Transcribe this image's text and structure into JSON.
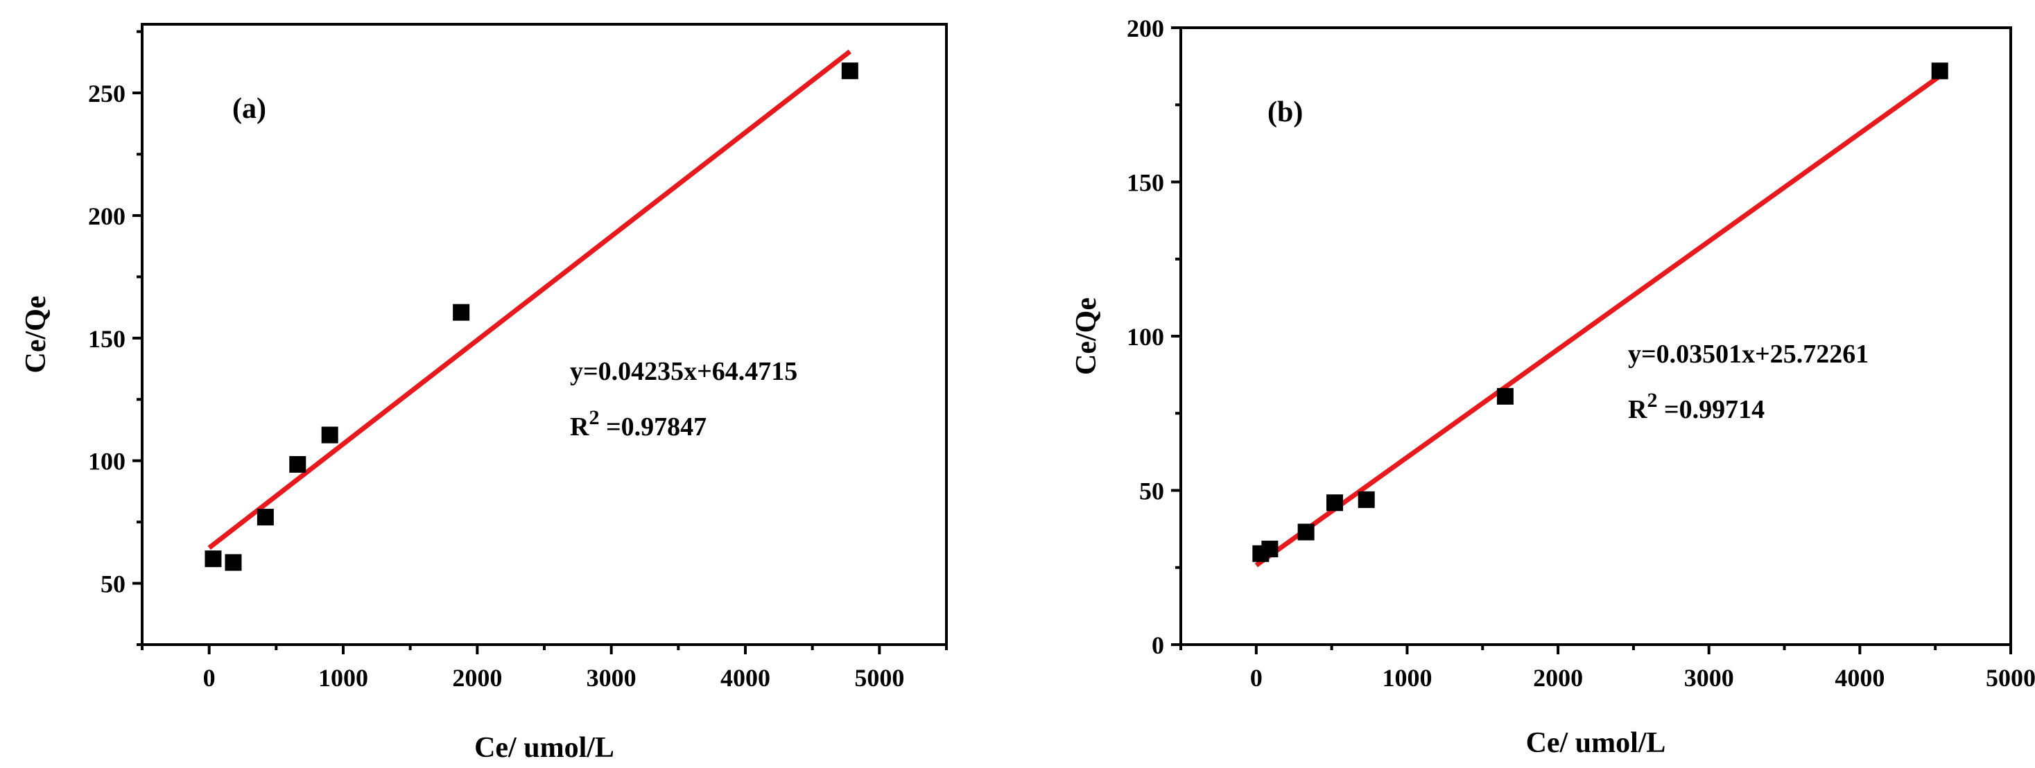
{
  "chart_data": [
    {
      "type": "scatter",
      "panel_label": "(a)",
      "xlabel": "Ce/ umol/L",
      "ylabel": "Ce/Qe",
      "xlim": [
        -500,
        5500
      ],
      "ylim": [
        25,
        278
      ],
      "xticks": [
        0,
        1000,
        2000,
        3000,
        4000,
        5000
      ],
      "yticks": [
        50,
        100,
        150,
        200,
        250
      ],
      "xtick_labels": [
        "0",
        "1000",
        "2000",
        "3000",
        "4000",
        "5000"
      ],
      "ytick_labels": [
        "50",
        "100",
        "150",
        "200",
        "250"
      ],
      "points": [
        {
          "x": 30,
          "y": 60
        },
        {
          "x": 180,
          "y": 58.5
        },
        {
          "x": 420,
          "y": 77
        },
        {
          "x": 660,
          "y": 98.5
        },
        {
          "x": 900,
          "y": 110.5
        },
        {
          "x": 1880,
          "y": 160.5
        },
        {
          "x": 4780,
          "y": 259
        }
      ],
      "fit": {
        "slope": 0.04235,
        "intercept": 64.4715,
        "x_range": [
          0,
          4780
        ]
      },
      "equation": "y=0.04235x+64.4715",
      "r2_prefix": "R",
      "r2_sup": "2",
      "r2_value": " =0.97847",
      "grid": false,
      "marker_color": "#000000",
      "fit_color": "#e8191c"
    },
    {
      "type": "scatter",
      "panel_label": "(b)",
      "xlabel": "Ce/ umol/L",
      "ylabel": "Ce/Qe",
      "xlim": [
        -500,
        5000
      ],
      "ylim": [
        0,
        200
      ],
      "xticks": [
        0,
        1000,
        2000,
        3000,
        4000,
        5000
      ],
      "yticks": [
        0,
        50,
        100,
        150,
        200
      ],
      "xtick_labels": [
        "0",
        "1000",
        "2000",
        "3000",
        "4000",
        "5000"
      ],
      "ytick_labels": [
        "0",
        "50",
        "100",
        "150",
        "200"
      ],
      "points": [
        {
          "x": 30,
          "y": 29.5
        },
        {
          "x": 90,
          "y": 31
        },
        {
          "x": 330,
          "y": 36.5
        },
        {
          "x": 520,
          "y": 46
        },
        {
          "x": 730,
          "y": 47
        },
        {
          "x": 1650,
          "y": 80.5
        },
        {
          "x": 4530,
          "y": 186
        }
      ],
      "fit": {
        "slope": 0.03501,
        "intercept": 25.72261,
        "x_range": [
          0,
          4530
        ]
      },
      "equation": "y=0.03501x+25.72261",
      "r2_prefix": "R",
      "r2_sup": "2",
      "r2_value": " =0.99714",
      "grid": false,
      "marker_color": "#000000",
      "fit_color": "#e8191c"
    }
  ]
}
